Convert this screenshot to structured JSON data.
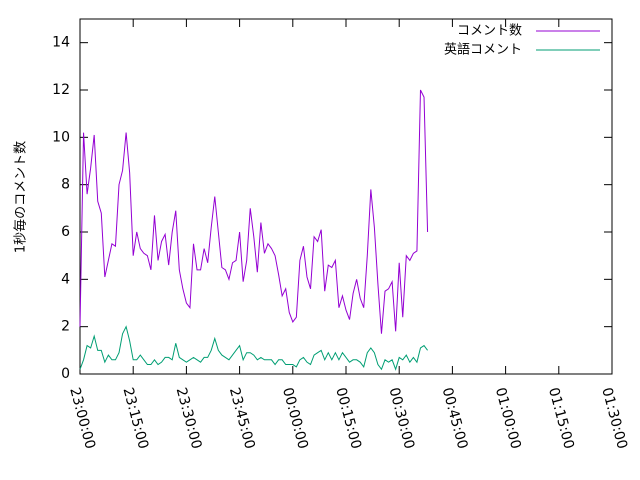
{
  "chart_data": {
    "type": "line",
    "title": "",
    "xlabel": "",
    "ylabel": "1秒毎のコメント数",
    "ylim": [
      0,
      15
    ],
    "xlim": [
      "23:00:00",
      "01:30:00"
    ],
    "x_start": "23:00:00",
    "x_step_seconds": 60,
    "xticks": [
      "23:00:00",
      "23:15:00",
      "23:30:00",
      "23:45:00",
      "00:00:00",
      "00:15:00",
      "00:30:00",
      "00:45:00",
      "01:00:00",
      "01:15:00",
      "01:30:00"
    ],
    "yticks": [
      0,
      2,
      4,
      6,
      8,
      10,
      12,
      14
    ],
    "grid": false,
    "legend_position": "top-right",
    "series": [
      {
        "name": "コメント数",
        "color": "#9400d3",
        "values": [
          2.0,
          10.2,
          7.6,
          8.7,
          10.1,
          7.3,
          6.8,
          4.1,
          4.8,
          5.5,
          5.4,
          8.0,
          8.6,
          10.2,
          8.5,
          5.0,
          6.0,
          5.3,
          5.1,
          5.0,
          4.4,
          6.7,
          4.8,
          5.6,
          5.9,
          4.6,
          6.0,
          6.9,
          4.4,
          3.6,
          3.0,
          2.8,
          5.5,
          4.4,
          4.4,
          5.3,
          4.7,
          6.2,
          7.5,
          6.0,
          4.5,
          4.4,
          4.0,
          4.7,
          4.8,
          6.0,
          3.9,
          4.8,
          7.0,
          5.8,
          4.3,
          6.4,
          5.1,
          5.5,
          5.3,
          5.0,
          4.2,
          3.3,
          3.6,
          2.6,
          2.2,
          2.4,
          4.8,
          5.4,
          4.1,
          3.6,
          5.8,
          5.6,
          6.1,
          3.5,
          4.6,
          4.5,
          4.8,
          2.8,
          3.3,
          2.7,
          2.3,
          3.4,
          4.0,
          3.2,
          2.8,
          5.0,
          7.8,
          6.2,
          3.8,
          1.7,
          3.5,
          3.6,
          3.9,
          1.8,
          4.7,
          2.4,
          5.0,
          4.8,
          5.1,
          5.2,
          12.0,
          11.7,
          6.0
        ]
      },
      {
        "name": "英語コメント",
        "color": "#009e73",
        "values": [
          0.2,
          0.6,
          1.2,
          1.1,
          1.6,
          1.0,
          1.0,
          0.5,
          0.8,
          0.6,
          0.6,
          0.9,
          1.7,
          2.0,
          1.4,
          0.6,
          0.6,
          0.8,
          0.6,
          0.4,
          0.4,
          0.6,
          0.4,
          0.5,
          0.7,
          0.7,
          0.6,
          1.3,
          0.7,
          0.6,
          0.5,
          0.6,
          0.7,
          0.6,
          0.5,
          0.7,
          0.7,
          1.0,
          1.5,
          1.0,
          0.8,
          0.7,
          0.6,
          0.8,
          1.0,
          1.2,
          0.6,
          0.9,
          0.9,
          0.8,
          0.6,
          0.7,
          0.6,
          0.6,
          0.6,
          0.4,
          0.6,
          0.6,
          0.4,
          0.4,
          0.4,
          0.3,
          0.6,
          0.7,
          0.5,
          0.4,
          0.8,
          0.9,
          1.0,
          0.6,
          0.9,
          0.6,
          0.9,
          0.6,
          0.9,
          0.7,
          0.5,
          0.6,
          0.6,
          0.5,
          0.3,
          0.9,
          1.1,
          0.9,
          0.4,
          0.2,
          0.6,
          0.5,
          0.6,
          0.2,
          0.7,
          0.6,
          0.8,
          0.5,
          0.7,
          0.5,
          1.1,
          1.2,
          1.0
        ]
      }
    ]
  }
}
